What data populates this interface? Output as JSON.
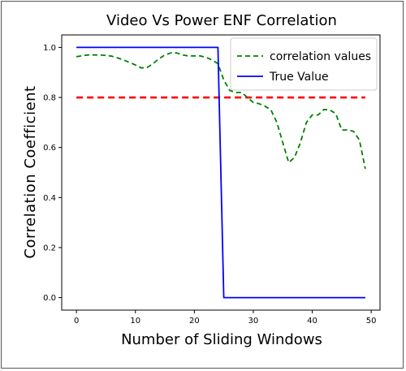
{
  "chart_data": {
    "type": "line",
    "title": "Video Vs Power ENF Correlation",
    "xlabel": "Number of Sliding Windows",
    "ylabel": "Correlation Coefficient",
    "xlim": [
      -2.5,
      51.5
    ],
    "ylim": [
      -0.05,
      1.05
    ],
    "xticks": [
      "0",
      "10",
      "20",
      "30",
      "40",
      "50"
    ],
    "yticks": [
      "0.0",
      "0.2",
      "0.4",
      "0.6",
      "0.8",
      "1.0"
    ],
    "grid": false,
    "legend_position": "top-right",
    "threshold": {
      "y": 0.8,
      "color": "#ff0000",
      "style": "dashed"
    },
    "series": [
      {
        "name": "correlation values",
        "color": "#008000",
        "style": "dashed",
        "x": [
          0,
          1,
          2,
          3,
          4,
          5,
          6,
          7,
          8,
          9,
          10,
          11,
          12,
          13,
          14,
          15,
          16,
          17,
          18,
          19,
          20,
          21,
          22,
          23,
          24,
          25,
          26,
          27,
          28,
          29,
          30,
          31,
          32,
          33,
          34,
          35,
          36,
          37,
          38,
          39,
          40,
          41,
          42,
          43,
          44,
          45,
          46,
          47,
          48,
          49
        ],
        "y": [
          0.963,
          0.967,
          0.97,
          0.97,
          0.97,
          0.968,
          0.965,
          0.958,
          0.95,
          0.94,
          0.93,
          0.918,
          0.92,
          0.935,
          0.955,
          0.97,
          0.978,
          0.978,
          0.97,
          0.966,
          0.966,
          0.966,
          0.96,
          0.95,
          0.935,
          0.87,
          0.828,
          0.82,
          0.82,
          0.8,
          0.78,
          0.775,
          0.765,
          0.75,
          0.7,
          0.62,
          0.54,
          0.56,
          0.62,
          0.7,
          0.73,
          0.73,
          0.752,
          0.75,
          0.735,
          0.67,
          0.67,
          0.665,
          0.63,
          0.515
        ]
      },
      {
        "name": "True Value",
        "color": "#0000ff",
        "style": "solid",
        "x": [
          0,
          24,
          25,
          49
        ],
        "y": [
          1.0,
          1.0,
          0.0,
          0.0
        ]
      }
    ]
  }
}
